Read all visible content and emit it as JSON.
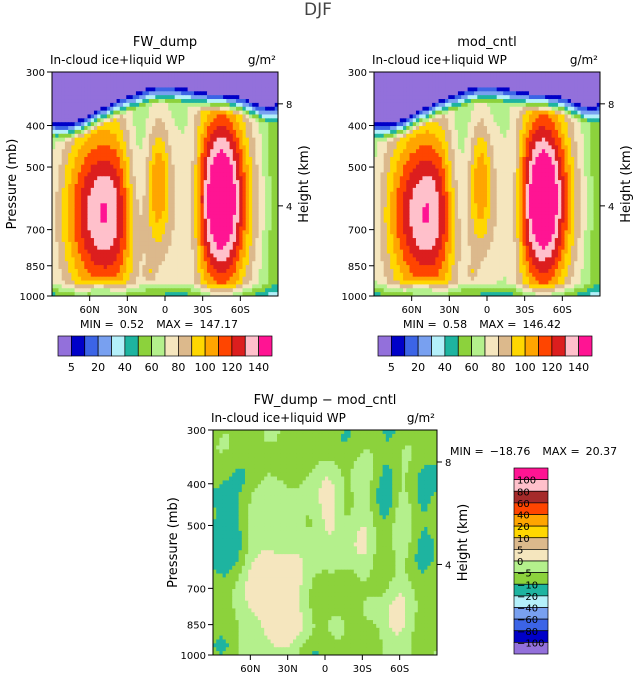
{
  "figure_title": "DJF",
  "colors": {
    "full": [
      "#9370db",
      "#0000c8",
      "#3c64e6",
      "#78a0f0",
      "#b4f0fa",
      "#1eb4a0",
      "#8cd23c",
      "#b4f08c",
      "#f5e6be",
      "#dcb98c",
      "#ffd700",
      "#ffa500",
      "#ff4500",
      "#dc1e1e",
      "#ffc0cb",
      "#ff1493"
    ],
    "diff": [
      "#9370db",
      "#0000c8",
      "#3c64e6",
      "#78a0f0",
      "#b4f0fa",
      "#1eb4a0",
      "#8cd23c",
      "#b4f08c",
      "#f5e6be",
      "#dcb98c",
      "#ffd700",
      "#ffa500",
      "#ff4500",
      "#a52a2a",
      "#ffc0cb",
      "#ff1493"
    ]
  },
  "chart_data": [
    {
      "type": "contour",
      "title": "FW_dump",
      "subtitle_left": "In-cloud ice+liquid WP",
      "subtitle_right": "g/m²",
      "ylabel": "Pressure (mb)",
      "ylabel_right": "Height (km)",
      "y_ticks": [
        "300",
        "400",
        "500",
        "700",
        "850",
        "1000"
      ],
      "y_tick_values": [
        300,
        400,
        500,
        700,
        850,
        1000
      ],
      "x_ticks": [
        "60N",
        "30N",
        "0",
        "30S",
        "60S"
      ],
      "x_tick_values": [
        60,
        30,
        0,
        -30,
        -60
      ],
      "x_range": [
        90,
        -90
      ],
      "y_range": [
        300,
        1000
      ],
      "right_ticks": [
        "8",
        "4"
      ],
      "right_tick_pressures": [
        356,
        616
      ],
      "min_label": "MIN =",
      "min_value": "0.52",
      "max_label": "MAX =",
      "max_value": "147.17",
      "field": "full",
      "features": [
        {
          "lat": 48,
          "p": 650,
          "rx": 24,
          "rp": 250,
          "level": 12
        },
        {
          "lat": 5,
          "p": 530,
          "rx": 6,
          "rp": 120,
          "level": 8
        },
        {
          "lat": -45,
          "p": 590,
          "rx": 15,
          "rp": 230,
          "level": 15
        },
        {
          "lat": 22,
          "p": 580,
          "rx": 8,
          "rp": 190,
          "level": -6
        },
        {
          "lat": -20,
          "p": 600,
          "rx": 6,
          "rp": 160,
          "level": -5
        },
        {
          "lat": 12,
          "p": 880,
          "rx": 3,
          "rp": 25,
          "level": 7
        }
      ]
    },
    {
      "type": "contour",
      "title": "mod_cntl",
      "subtitle_left": "In-cloud ice+liquid WP",
      "subtitle_right": "g/m²",
      "ylabel": "",
      "ylabel_right": "Height (km)",
      "y_ticks": [
        "300",
        "400",
        "500",
        "700",
        "850",
        "1000"
      ],
      "y_tick_values": [
        300,
        400,
        500,
        700,
        850,
        1000
      ],
      "x_ticks": [
        "60N",
        "30N",
        "0",
        "30S",
        "60S"
      ],
      "x_tick_values": [
        60,
        30,
        0,
        -30,
        -60
      ],
      "x_range": [
        90,
        -90
      ],
      "y_range": [
        300,
        1000
      ],
      "right_ticks": [
        "8",
        "4"
      ],
      "right_tick_pressures": [
        356,
        616
      ],
      "min_label": "MIN =",
      "min_value": "0.58",
      "max_label": "MAX =",
      "max_value": "146.42",
      "field": "full",
      "features": [
        {
          "lat": 48,
          "p": 650,
          "rx": 23,
          "rp": 245,
          "level": 12
        },
        {
          "lat": 5,
          "p": 530,
          "rx": 6,
          "rp": 120,
          "level": 8
        },
        {
          "lat": -45,
          "p": 590,
          "rx": 15,
          "rp": 225,
          "level": 15
        },
        {
          "lat": 22,
          "p": 590,
          "rx": 8,
          "rp": 190,
          "level": -6
        },
        {
          "lat": -20,
          "p": 600,
          "rx": 6,
          "rp": 160,
          "level": -5
        },
        {
          "lat": 12,
          "p": 880,
          "rx": 3,
          "rp": 25,
          "level": 7
        }
      ]
    },
    {
      "type": "contour",
      "title": "FW_dump − mod_cntl",
      "subtitle_left": "In-cloud ice+liquid WP",
      "subtitle_right": "g/m²",
      "ylabel": "Pressure (mb)",
      "ylabel_right": "Height (km)",
      "y_ticks": [
        "300",
        "400",
        "500",
        "700",
        "850",
        "1000"
      ],
      "y_tick_values": [
        300,
        400,
        500,
        700,
        850,
        1000
      ],
      "x_ticks": [
        "60N",
        "30N",
        "0",
        "30S",
        "60S"
      ],
      "x_tick_values": [
        60,
        30,
        0,
        -30,
        -60
      ],
      "x_range": [
        90,
        -90
      ],
      "y_range": [
        300,
        1000
      ],
      "right_ticks": [
        "8",
        "4"
      ],
      "right_tick_pressures": [
        356,
        616
      ],
      "min_label": "MIN =",
      "min_value": "−18.76",
      "max_label": "MAX =",
      "max_value": "20.37",
      "field": "diff"
    }
  ],
  "colorbars": [
    {
      "orientation": "horizontal",
      "labels": [
        "5",
        "20",
        "40",
        "60",
        "80",
        "100",
        "120",
        "140"
      ]
    },
    {
      "orientation": "horizontal",
      "labels": [
        "5",
        "20",
        "40",
        "60",
        "80",
        "100",
        "120",
        "140"
      ]
    },
    {
      "orientation": "vertical",
      "labels": [
        "100",
        "80",
        "60",
        "40",
        "20",
        "10",
        "5",
        "0",
        "−5",
        "−10",
        "−20",
        "−40",
        "−60",
        "−80",
        "−100"
      ]
    }
  ]
}
